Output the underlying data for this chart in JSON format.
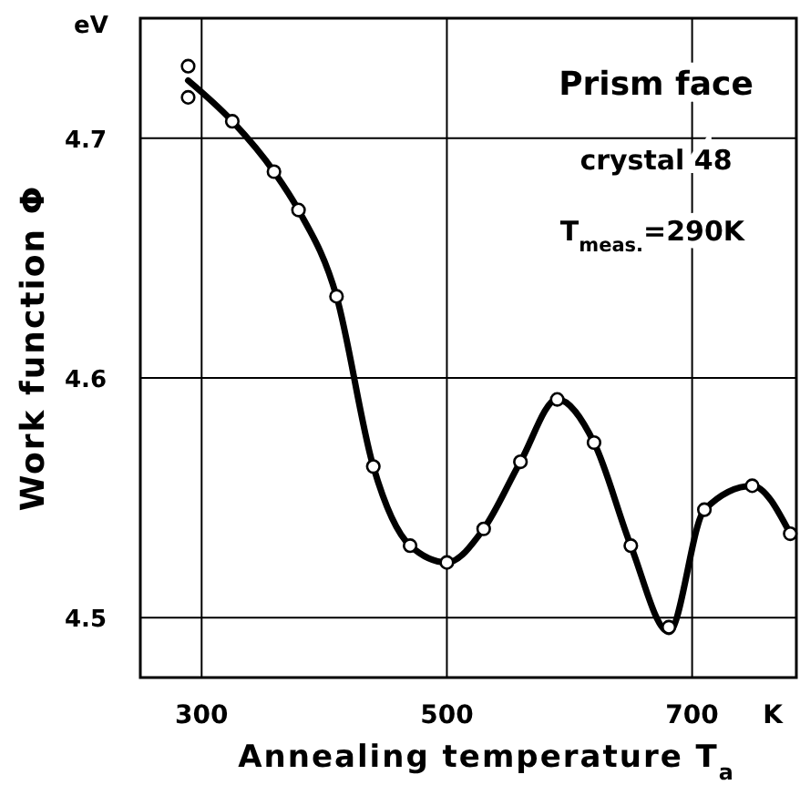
{
  "chart_data": {
    "type": "line",
    "xlabel": "Annealing temperature T$_{a}$",
    "ylabel": "Work function Φ",
    "xlim": [
      250,
      785
    ],
    "ylim": [
      4.475,
      4.75
    ],
    "xticks": [
      300,
      500,
      700
    ],
    "yticks": [
      4.5,
      4.6,
      4.7
    ],
    "grid": true,
    "annotations": [
      "eV",
      "K",
      "Prism face",
      "crystal 48",
      "T$_{meas.}$=290K"
    ],
    "series": [
      {
        "color": "#000000",
        "marker": "none",
        "line_style": "solid",
        "x": [
          289,
          325,
          359,
          379,
          410,
          440,
          470,
          500,
          530,
          560,
          590,
          620,
          650,
          681,
          710,
          749,
          780
        ],
        "values": [
          4.724,
          4.707,
          4.686,
          4.67,
          4.634,
          4.563,
          4.53,
          4.523,
          4.537,
          4.565,
          4.591,
          4.573,
          4.53,
          4.494,
          4.545,
          4.555,
          4.535
        ]
      },
      {
        "type": "scatter",
        "color": "#000000",
        "marker": "circle",
        "x": [
          289,
          289,
          325,
          359,
          379,
          410,
          440,
          470,
          500,
          530,
          560,
          590,
          620,
          650,
          681,
          710,
          749,
          780
        ],
        "values": [
          4.73,
          4.717,
          4.707,
          4.686,
          4.67,
          4.634,
          4.563,
          4.53,
          4.523,
          4.537,
          4.565,
          4.591,
          4.573,
          4.53,
          4.496,
          4.545,
          4.555,
          4.535
        ]
      }
    ]
  }
}
